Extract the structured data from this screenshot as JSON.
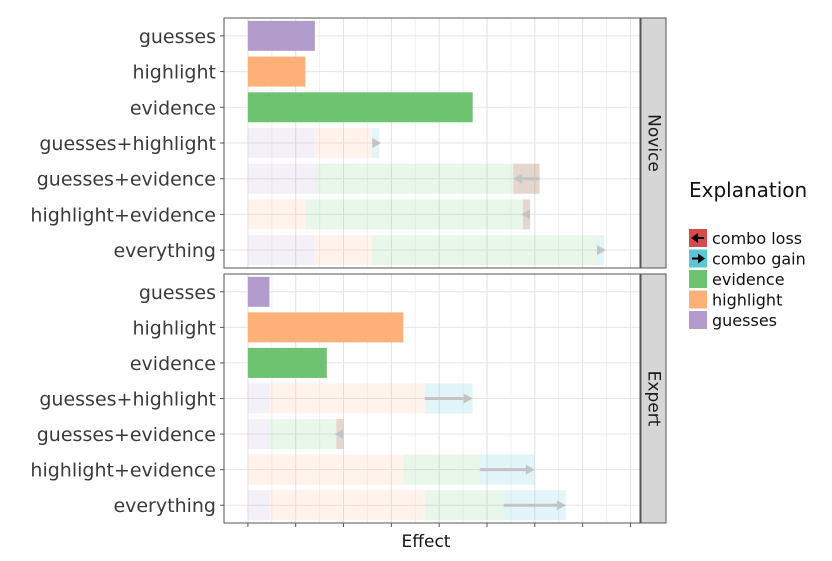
{
  "chart_data": {
    "type": "bar",
    "orientation": "horizontal",
    "stacked": true,
    "xlabel": "Effect",
    "ylabel": "",
    "x_tick_labels_shown": false,
    "grid": true,
    "legend": {
      "title": "Explanation",
      "placement": "right",
      "entries": [
        "combo loss",
        "combo gain",
        "evidence",
        "highlight",
        "guesses"
      ]
    },
    "colors": {
      "guesses": "#b19ccc",
      "highlight": "#fdb077",
      "evidence": "#6dc36f",
      "combo loss": "#d44b4b",
      "combo gain": "#5cc6d6",
      "arrow": "#c4c4c4",
      "strip_fill": "#d6d6d6"
    },
    "categories": [
      "guesses",
      "highlight",
      "evidence",
      "guesses+highlight",
      "guesses+evidence",
      "highlight+evidence",
      "everything"
    ],
    "xlim": [
      -0.5,
      8.2
    ],
    "panels": [
      {
        "name": "Novice",
        "rows": [
          {
            "label": "guesses",
            "segments": [
              {
                "type": "guesses",
                "value": 1.4
              }
            ]
          },
          {
            "label": "highlight",
            "segments": [
              {
                "type": "highlight",
                "value": 1.2
              }
            ]
          },
          {
            "label": "evidence",
            "segments": [
              {
                "type": "evidence",
                "value": 4.7
              }
            ]
          },
          {
            "label": "guesses+highlight",
            "segments": [
              {
                "type": "guesses",
                "value": 1.4
              },
              {
                "type": "highlight",
                "value": 1.2
              }
            ],
            "combo": {
              "type": "gain",
              "value": 0.15
            }
          },
          {
            "label": "guesses+evidence",
            "segments": [
              {
                "type": "guesses",
                "value": 1.4
              },
              {
                "type": "evidence",
                "value": 4.7
              }
            ],
            "combo": {
              "type": "loss",
              "value": -0.55
            }
          },
          {
            "label": "highlight+evidence",
            "segments": [
              {
                "type": "highlight",
                "value": 1.2
              },
              {
                "type": "evidence",
                "value": 4.7
              }
            ],
            "combo": {
              "type": "loss",
              "value": -0.15
            }
          },
          {
            "label": "everything",
            "segments": [
              {
                "type": "guesses",
                "value": 1.4
              },
              {
                "type": "highlight",
                "value": 1.2
              },
              {
                "type": "evidence",
                "value": 4.7
              }
            ],
            "combo": {
              "type": "gain",
              "value": 0.15
            }
          }
        ]
      },
      {
        "name": "Expert",
        "rows": [
          {
            "label": "guesses",
            "segments": [
              {
                "type": "guesses",
                "value": 0.45
              }
            ]
          },
          {
            "label": "highlight",
            "segments": [
              {
                "type": "highlight",
                "value": 3.25
              }
            ]
          },
          {
            "label": "evidence",
            "segments": [
              {
                "type": "evidence",
                "value": 1.65
              }
            ]
          },
          {
            "label": "guesses+highlight",
            "segments": [
              {
                "type": "guesses",
                "value": 0.45
              },
              {
                "type": "highlight",
                "value": 3.25
              }
            ],
            "combo": {
              "type": "gain",
              "value": 1.0
            }
          },
          {
            "label": "guesses+evidence",
            "segments": [
              {
                "type": "guesses",
                "value": 0.45
              },
              {
                "type": "evidence",
                "value": 1.55
              }
            ],
            "combo": {
              "type": "loss",
              "value": -0.15
            }
          },
          {
            "label": "highlight+evidence",
            "segments": [
              {
                "type": "highlight",
                "value": 3.25
              },
              {
                "type": "evidence",
                "value": 1.6
              }
            ],
            "combo": {
              "type": "gain",
              "value": 1.15
            }
          },
          {
            "label": "everything",
            "segments": [
              {
                "type": "guesses",
                "value": 0.45
              },
              {
                "type": "highlight",
                "value": 3.25
              },
              {
                "type": "evidence",
                "value": 1.65
              }
            ],
            "combo": {
              "type": "gain",
              "value": 1.3
            }
          }
        ]
      }
    ]
  }
}
